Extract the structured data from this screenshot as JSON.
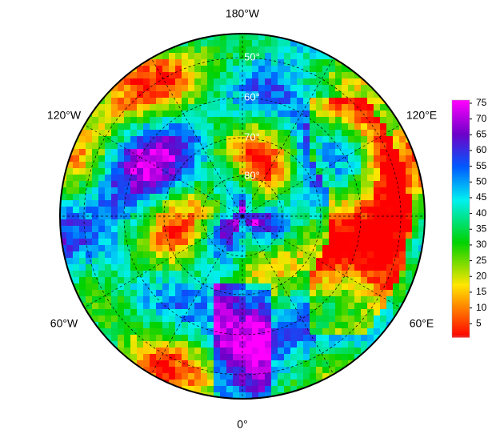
{
  "map": {
    "longitude_labels": [
      "180°W",
      "120°W",
      "120°E",
      "60°W",
      "60°E",
      "0°"
    ],
    "latitude_labels": [
      "50°",
      "60°",
      "70°",
      "80°"
    ],
    "colorbar": {
      "lim": [
        1,
        76
      ],
      "ticks": [
        5,
        10,
        15,
        20,
        25,
        30,
        35,
        40,
        45,
        50,
        55,
        60,
        65,
        70,
        75
      ]
    }
  }
}
